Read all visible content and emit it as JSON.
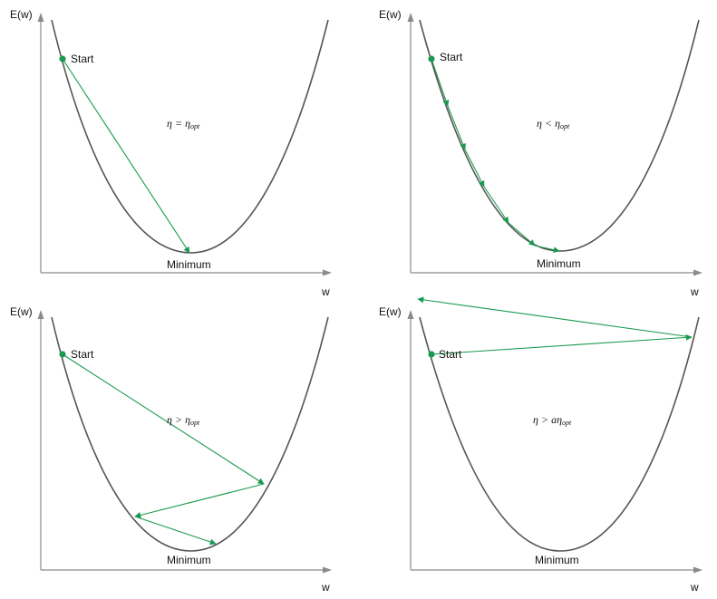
{
  "colors": {
    "curve": "#555555",
    "axis": "#8a8a8a",
    "path": "#1a9a50"
  },
  "labels": {
    "y_axis": "E(w)",
    "x_axis": "w",
    "start": "Start",
    "minimum": "Minimum"
  },
  "panels": [
    {
      "id": "panel-1",
      "formula": {
        "lhs": "η",
        "op": "=",
        "rhs": "η",
        "sub": "opt"
      }
    },
    {
      "id": "panel-2",
      "formula": {
        "lhs": "η",
        "op": "<",
        "rhs": "η",
        "sub": "opt"
      }
    },
    {
      "id": "panel-3",
      "formula": {
        "lhs": "η",
        "op": ">",
        "rhs": "η",
        "sub": "opt"
      }
    },
    {
      "id": "panel-4",
      "formula": {
        "lhs": "η",
        "op": ">",
        "rhs": "aη",
        "sub": "opt"
      }
    }
  ]
}
